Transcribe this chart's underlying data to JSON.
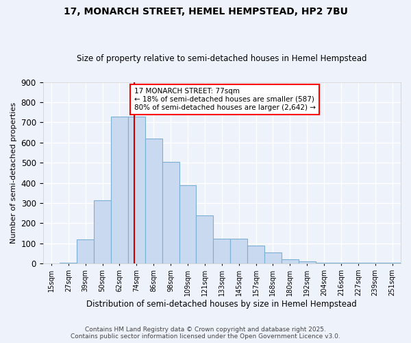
{
  "title1": "17, MONARCH STREET, HEMEL HEMPSTEAD, HP2 7BU",
  "title2": "Size of property relative to semi-detached houses in Hemel Hempstead",
  "xlabel": "Distribution of semi-detached houses by size in Hemel Hempstead",
  "ylabel": "Number of semi-detached properties",
  "categories": [
    "15sqm",
    "27sqm",
    "39sqm",
    "50sqm",
    "62sqm",
    "74sqm",
    "86sqm",
    "98sqm",
    "109sqm",
    "121sqm",
    "133sqm",
    "145sqm",
    "157sqm",
    "168sqm",
    "180sqm",
    "192sqm",
    "204sqm",
    "216sqm",
    "227sqm",
    "239sqm",
    "251sqm"
  ],
  "values": [
    0,
    5,
    120,
    315,
    730,
    730,
    620,
    505,
    390,
    240,
    125,
    125,
    90,
    55,
    20,
    10,
    5,
    5,
    5,
    5,
    5
  ],
  "bar_color": "#c9d9f0",
  "bar_edge_color": "#7bafd4",
  "annotation_text": "17 MONARCH STREET: 77sqm\n← 18% of semi-detached houses are smaller (587)\n80% of semi-detached houses are larger (2,642) →",
  "vline_x_index": 5,
  "vline_color": "#cc0000",
  "ylim": [
    0,
    900
  ],
  "yticks": [
    0,
    100,
    200,
    300,
    400,
    500,
    600,
    700,
    800,
    900
  ],
  "footer": "Contains HM Land Registry data © Crown copyright and database right 2025.\nContains public sector information licensed under the Open Government Licence v3.0.",
  "bg_color": "#eef2fa",
  "grid_color": "#ffffff"
}
